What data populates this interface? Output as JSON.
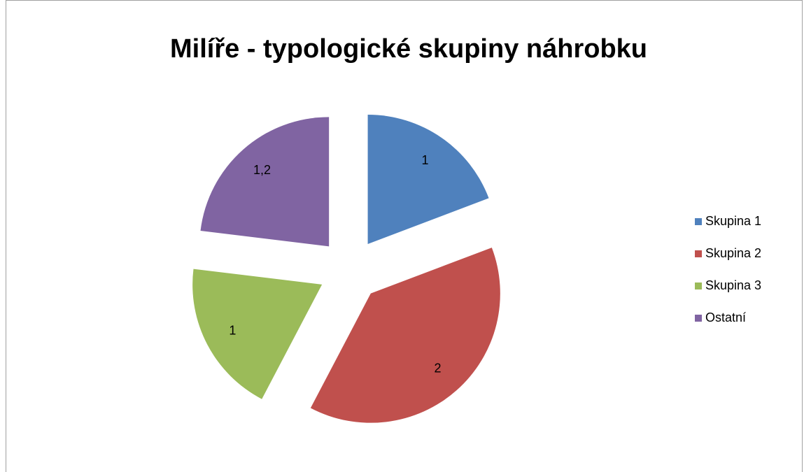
{
  "chart_data": {
    "type": "pie",
    "title": "Milíře - typologické skupiny náhrobku",
    "categories": [
      "Skupina 1",
      "Skupina 2",
      "Skupina 3",
      "Ostatní"
    ],
    "values": [
      1,
      2,
      1,
      1.2
    ],
    "value_labels": [
      "1",
      "2",
      "1",
      "1,2"
    ],
    "colors": [
      "#4f81bd",
      "#c0504d",
      "#9bbb59",
      "#8064a2"
    ],
    "legend": "right"
  }
}
